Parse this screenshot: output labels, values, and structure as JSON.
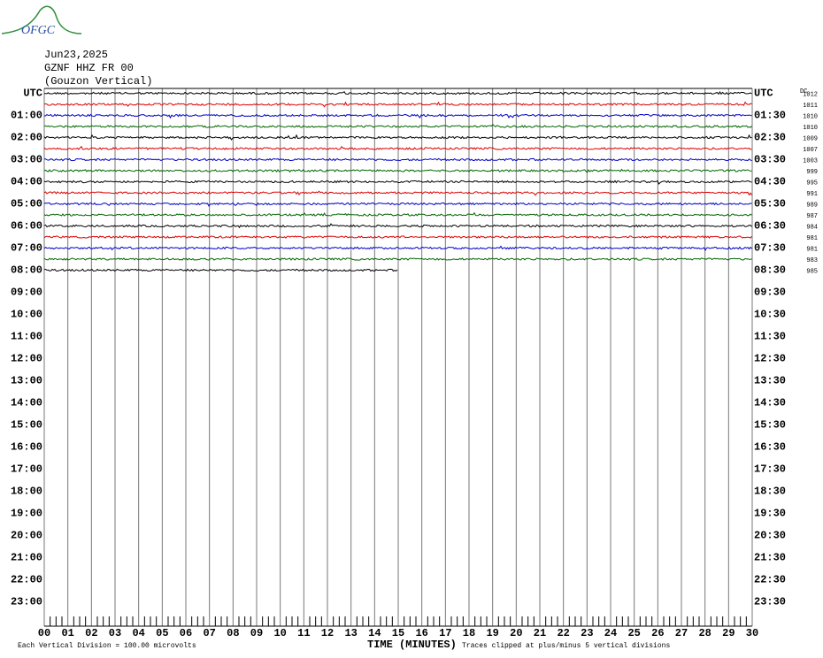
{
  "chart_data": {
    "type": "helicorder",
    "logo": "OFGC",
    "title_lines": [
      "Jun23,2025",
      "GZNF HHZ FR 00",
      "(Gouzon Vertical)"
    ],
    "left_labels": [
      "UTC",
      "01:00",
      "02:00",
      "03:00",
      "04:00",
      "05:00",
      "06:00",
      "07:00",
      "08:00",
      "09:00",
      "10:00",
      "11:00",
      "12:00",
      "13:00",
      "14:00",
      "15:00",
      "16:00",
      "17:00",
      "18:00",
      "19:00",
      "20:00",
      "21:00",
      "22:00",
      "23:00"
    ],
    "right_labels": [
      "UTC",
      "01:30",
      "02:30",
      "03:30",
      "04:30",
      "05:30",
      "06:30",
      "07:30",
      "08:30",
      "09:30",
      "10:30",
      "11:30",
      "12:30",
      "13:30",
      "14:30",
      "15:30",
      "16:30",
      "17:30",
      "18:30",
      "19:30",
      "20:30",
      "21:30",
      "22:30",
      "23:30"
    ],
    "xlim": [
      0,
      30
    ],
    "xticks": [
      {
        "value": 0,
        "label": "00"
      },
      {
        "value": 1,
        "label": "01"
      },
      {
        "value": 2,
        "label": "02"
      },
      {
        "value": 3,
        "label": "03"
      },
      {
        "value": 4,
        "label": "04"
      },
      {
        "value": 5,
        "label": "05"
      },
      {
        "value": 6,
        "label": "06"
      },
      {
        "value": 7,
        "label": "07"
      },
      {
        "value": 8,
        "label": "08"
      },
      {
        "value": 9,
        "label": "09"
      },
      10,
      11,
      12,
      13,
      14,
      15,
      16,
      17,
      18,
      19,
      20,
      21,
      22,
      23,
      24,
      25,
      26,
      27,
      28,
      29,
      30
    ],
    "xlabel": "TIME (MINUTES)",
    "dc_header": "DC",
    "colors": [
      "#000000",
      "#dd0000",
      "#0000cc",
      "#006600"
    ],
    "traces": [
      {
        "dc": 1012,
        "end": 30
      },
      {
        "dc": 1011,
        "end": 30
      },
      {
        "dc": 1010,
        "end": 30
      },
      {
        "dc": 1010,
        "end": 30
      },
      {
        "dc": 1009,
        "end": 30
      },
      {
        "dc": 1007,
        "end": 30
      },
      {
        "dc": 1003,
        "end": 30
      },
      {
        "dc": 999,
        "end": 30
      },
      {
        "dc": 995,
        "end": 30
      },
      {
        "dc": 991,
        "end": 30
      },
      {
        "dc": 989,
        "end": 30
      },
      {
        "dc": 987,
        "end": 30
      },
      {
        "dc": 984,
        "end": 30
      },
      {
        "dc": 981,
        "end": 30
      },
      {
        "dc": 981,
        "end": 30
      },
      {
        "dc": 983,
        "end": 30
      },
      {
        "dc": 985,
        "end": 15
      }
    ],
    "notes": [
      "Each Vertical Division =  100.00 microvolts",
      "Traces clipped at plus/minus 5 vertical divisions"
    ]
  }
}
